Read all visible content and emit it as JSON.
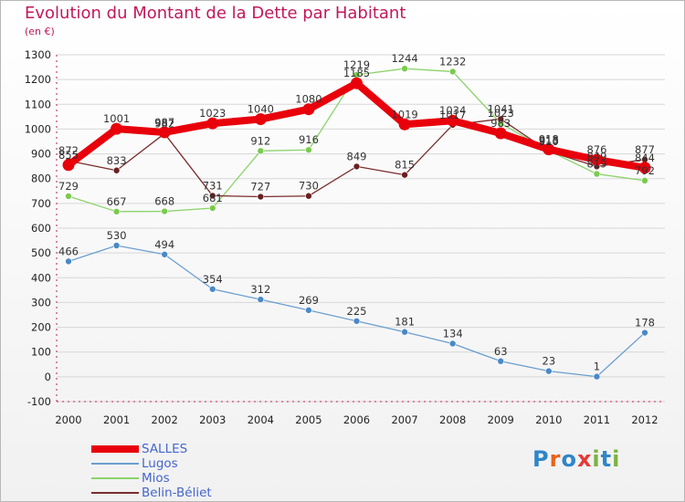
{
  "title": "Evolution du Montant de la Dette par Habitant",
  "subtitle": "(en €)",
  "logo": {
    "text": "Proxiti",
    "colors": [
      "#2f86c8",
      "#e8621a",
      "#2f86c8",
      "#e53935",
      "#7cb342",
      "#2f86c8",
      "#7cb342"
    ]
  },
  "chart_data": {
    "type": "line",
    "title": "Evolution du Montant de la Dette par Habitant",
    "subtitle": "(en €)",
    "x": [
      "2000",
      "2001",
      "2002",
      "2003",
      "2004",
      "2005",
      "2006",
      "2007",
      "2008",
      "2009",
      "2010",
      "2011",
      "2012"
    ],
    "y_ticks": [
      -100,
      0,
      100,
      200,
      300,
      400,
      500,
      600,
      700,
      800,
      900,
      1000,
      1100,
      1200,
      1300
    ],
    "ylim": [
      -100,
      1300
    ],
    "grid": "horizontal",
    "legend_position": "bottom-left",
    "series": [
      {
        "name": "SALLES",
        "color": "#e8000b",
        "values": [
          855,
          1001,
          987,
          1023,
          1040,
          1080,
          1185,
          1019,
          1034,
          983,
          918,
          876,
          844
        ]
      },
      {
        "name": "Lugos",
        "color": "#6a9fcf",
        "values": [
          466,
          530,
          494,
          354,
          312,
          269,
          225,
          181,
          134,
          63,
          23,
          1,
          178
        ]
      },
      {
        "name": "Mios",
        "color": "#8cd36a",
        "values": [
          729,
          667,
          668,
          681,
          912,
          916,
          1219,
          1244,
          1232,
          1023,
          913,
          819,
          792
        ]
      },
      {
        "name": "Belin-Béliet",
        "color": "#7a2e2e",
        "values": [
          872,
          833,
          982,
          731,
          727,
          730,
          849,
          815,
          1017,
          1041,
          910,
          849,
          877
        ]
      }
    ]
  }
}
